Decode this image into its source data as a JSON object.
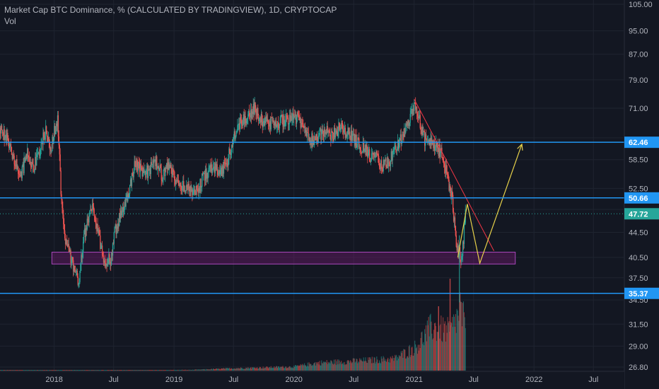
{
  "header": {
    "title": "Market Cap BTC Dominance, % (CALCULATED BY TRADINGVIEW), 1D, CRYPTOCAP",
    "indicator": "Vol"
  },
  "colors": {
    "background": "#131722",
    "grid": "#1f2430",
    "axis_text": "#b2b5be",
    "up_candle": "#26a69a",
    "down_candle": "#ef5350",
    "level_line": "#2196f3",
    "level_label_bg": "#2196f3",
    "last_price_bg": "#26a69a",
    "zone_fill": "#6a1b6a",
    "zone_border": "#ab47bc",
    "trend_line": "#f23645",
    "projection": "#e8d24a"
  },
  "chart_data": {
    "type": "candlestick",
    "title": "Market Cap BTC Dominance, % (CALCULATED BY TRADINGVIEW), 1D, CRYPTOCAP",
    "y_scale": "log",
    "y_ticks": [
      105.0,
      95.0,
      87.0,
      79.0,
      71.0,
      63.5,
      58.5,
      52.5,
      48.5,
      44.5,
      40.5,
      37.5,
      34.5,
      31.5,
      29.0,
      26.8
    ],
    "y_tick_labels": [
      "105.00",
      "95.00",
      "87.00",
      "79.00",
      "71.00",
      "",
      "58.50",
      "52.50",
      "",
      "44.50",
      "40.50",
      "37.50",
      "34.50",
      "31.50",
      "29.00",
      "26.80"
    ],
    "x_ticks": [
      "2018",
      "Jul",
      "2019",
      "Jul",
      "2020",
      "Jul",
      "2021",
      "Jul",
      "2022",
      "Jul"
    ],
    "x_tick_dates": [
      "2018-01-01",
      "2018-07-01",
      "2019-01-01",
      "2019-07-01",
      "2020-01-01",
      "2020-07-01",
      "2021-01-01",
      "2021-07-01",
      "2022-01-01",
      "2022-07-01"
    ],
    "x_range": [
      "2017-07-20",
      "2022-10-01"
    ],
    "grid": true,
    "price_path": [
      [
        "2017-07-20",
        66
      ],
      [
        "2017-08-10",
        63
      ],
      [
        "2017-09-01",
        58
      ],
      [
        "2017-09-20",
        55
      ],
      [
        "2017-10-10",
        60
      ],
      [
        "2017-10-30",
        57
      ],
      [
        "2017-11-20",
        61
      ],
      [
        "2017-12-05",
        66
      ],
      [
        "2017-12-20",
        60
      ],
      [
        "2018-01-02",
        66
      ],
      [
        "2018-01-10",
        68
      ],
      [
        "2018-01-20",
        52
      ],
      [
        "2018-02-01",
        44
      ],
      [
        "2018-02-15",
        41
      ],
      [
        "2018-03-01",
        39
      ],
      [
        "2018-03-15",
        37
      ],
      [
        "2018-04-01",
        44
      ],
      [
        "2018-04-25",
        49
      ],
      [
        "2018-05-15",
        44
      ],
      [
        "2018-06-01",
        40
      ],
      [
        "2018-06-20",
        40
      ],
      [
        "2018-07-05",
        45
      ],
      [
        "2018-07-25",
        48
      ],
      [
        "2018-08-15",
        52
      ],
      [
        "2018-09-05",
        58
      ],
      [
        "2018-09-25",
        56
      ],
      [
        "2018-10-15",
        56
      ],
      [
        "2018-11-05",
        58
      ],
      [
        "2018-11-25",
        55
      ],
      [
        "2018-12-15",
        57
      ],
      [
        "2019-01-05",
        54
      ],
      [
        "2019-02-01",
        53
      ],
      [
        "2019-03-01",
        51
      ],
      [
        "2019-04-01",
        55
      ],
      [
        "2019-05-01",
        57
      ],
      [
        "2019-05-20",
        55
      ],
      [
        "2019-06-10",
        58
      ],
      [
        "2019-07-05",
        65
      ],
      [
        "2019-07-25",
        68
      ],
      [
        "2019-08-15",
        69
      ],
      [
        "2019-09-01",
        71
      ],
      [
        "2019-09-20",
        68
      ],
      [
        "2019-10-15",
        67
      ],
      [
        "2019-11-05",
        67
      ],
      [
        "2019-12-01",
        68
      ],
      [
        "2019-12-25",
        69
      ],
      [
        "2020-01-15",
        68
      ],
      [
        "2020-02-05",
        65
      ],
      [
        "2020-02-25",
        63
      ],
      [
        "2020-03-15",
        64
      ],
      [
        "2020-04-05",
        65
      ],
      [
        "2020-04-25",
        64
      ],
      [
        "2020-05-15",
        66
      ],
      [
        "2020-06-05",
        65
      ],
      [
        "2020-06-25",
        64
      ],
      [
        "2020-07-15",
        62
      ],
      [
        "2020-08-01",
        61
      ],
      [
        "2020-08-20",
        59
      ],
      [
        "2020-09-05",
        59
      ],
      [
        "2020-09-25",
        57
      ],
      [
        "2020-10-15",
        58
      ],
      [
        "2020-11-05",
        61
      ],
      [
        "2020-11-25",
        64
      ],
      [
        "2020-12-15",
        67
      ],
      [
        "2021-01-02",
        72
      ],
      [
        "2021-01-15",
        68
      ],
      [
        "2021-02-01",
        63
      ],
      [
        "2021-02-20",
        62
      ],
      [
        "2021-03-10",
        61
      ],
      [
        "2021-03-25",
        60
      ],
      [
        "2021-04-10",
        55
      ],
      [
        "2021-04-25",
        51
      ],
      [
        "2021-05-05",
        44
      ],
      [
        "2021-05-15",
        41
      ],
      [
        "2021-05-20",
        40
      ],
      [
        "2021-05-28",
        42
      ],
      [
        "2021-06-05",
        47.72
      ]
    ],
    "volume_path": [
      [
        "2017-07-20",
        0.004
      ],
      [
        "2017-12-01",
        0.006
      ],
      [
        "2018-03-01",
        0.005
      ],
      [
        "2018-09-01",
        0.004
      ],
      [
        "2019-03-01",
        0.01
      ],
      [
        "2019-07-01",
        0.03
      ],
      [
        "2020-01-01",
        0.05
      ],
      [
        "2020-03-15",
        0.1
      ],
      [
        "2020-07-01",
        0.12
      ],
      [
        "2020-11-01",
        0.15
      ],
      [
        "2021-01-05",
        0.3
      ],
      [
        "2021-02-20",
        0.55
      ],
      [
        "2021-04-20",
        0.5
      ],
      [
        "2021-05-20",
        0.75
      ],
      [
        "2021-06-05",
        0.6
      ]
    ],
    "volume_spikes": [
      [
        "2021-04-19",
        1.0
      ],
      [
        "2021-05-19",
        0.85
      ],
      [
        "2021-03-15",
        0.7
      ]
    ],
    "horizontal_levels": [
      {
        "value": 62.46,
        "label": "62.46"
      },
      {
        "value": 50.66,
        "label": "50.66"
      },
      {
        "value": 35.37,
        "label": "35.37"
      }
    ],
    "last_price": {
      "value": 47.72,
      "label": "47.72"
    },
    "support_zone": {
      "from": "2017-12-25",
      "to": "2021-11-05",
      "low": 39.5,
      "high": 41.3
    },
    "trend_line": {
      "from": [
        "2021-01-01",
        73.5
      ],
      "to": [
        "2021-09-01",
        41.5
      ]
    },
    "projection_path": [
      [
        "2021-05-14",
        40.5
      ],
      [
        "2021-06-12",
        49.5
      ],
      [
        "2021-07-20",
        39.6
      ],
      [
        "2021-11-25",
        62.0
      ]
    ]
  }
}
